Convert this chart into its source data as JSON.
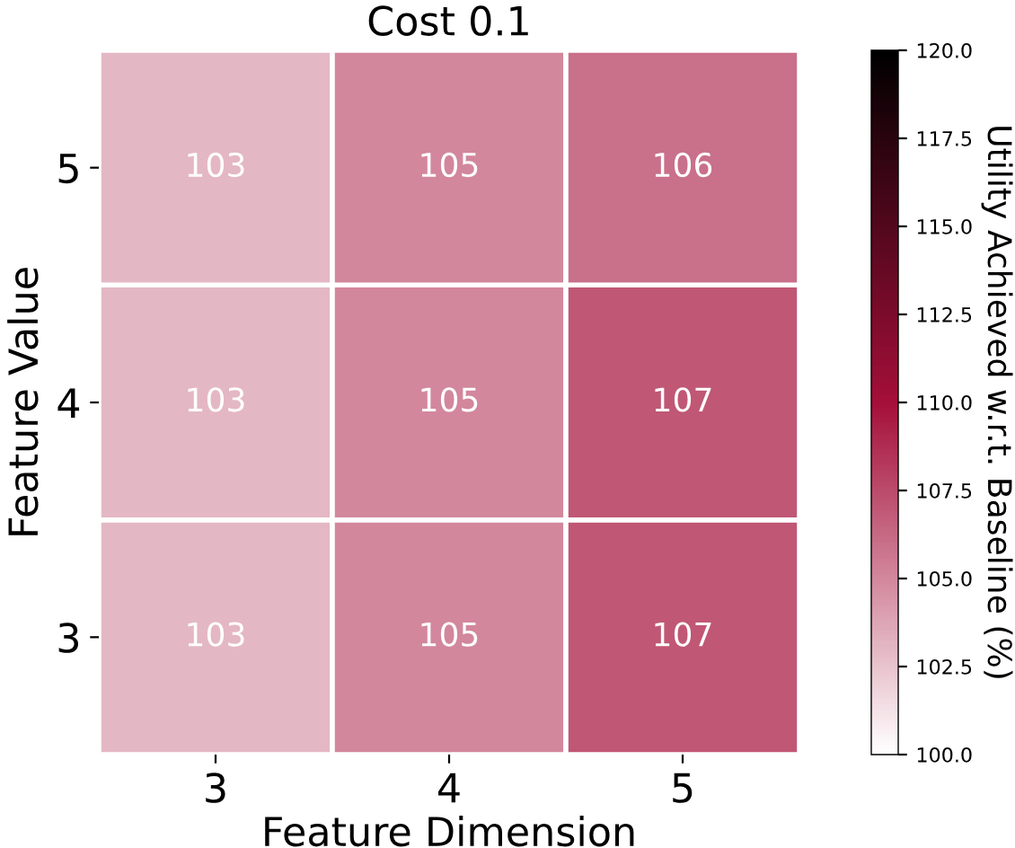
{
  "chart_data": {
    "type": "heatmap",
    "title": "Cost 0.1",
    "xlabel": "Feature Dimension",
    "ylabel": "Feature Value",
    "clabel": "Utility Achieved w.r.t. Baseline (%)",
    "categories": [
      "3",
      "4",
      "5"
    ],
    "y_categories": [
      "5",
      "4",
      "3"
    ],
    "cells": [
      [
        103,
        105,
        106
      ],
      [
        103,
        105,
        107
      ],
      [
        103,
        105,
        107
      ]
    ],
    "data_labels": true,
    "clim": [
      100,
      120
    ],
    "cticks": [
      {
        "value": 100,
        "label": "100.0"
      },
      {
        "value": 102.5,
        "label": "102.5"
      },
      {
        "value": 105,
        "label": "105.0"
      },
      {
        "value": 107.5,
        "label": "107.5"
      },
      {
        "value": 110,
        "label": "110.0"
      },
      {
        "value": 112.5,
        "label": "112.5"
      },
      {
        "value": 115,
        "label": "115.0"
      },
      {
        "value": 117.5,
        "label": "117.5"
      },
      {
        "value": 120,
        "label": "120.0"
      }
    ]
  }
}
